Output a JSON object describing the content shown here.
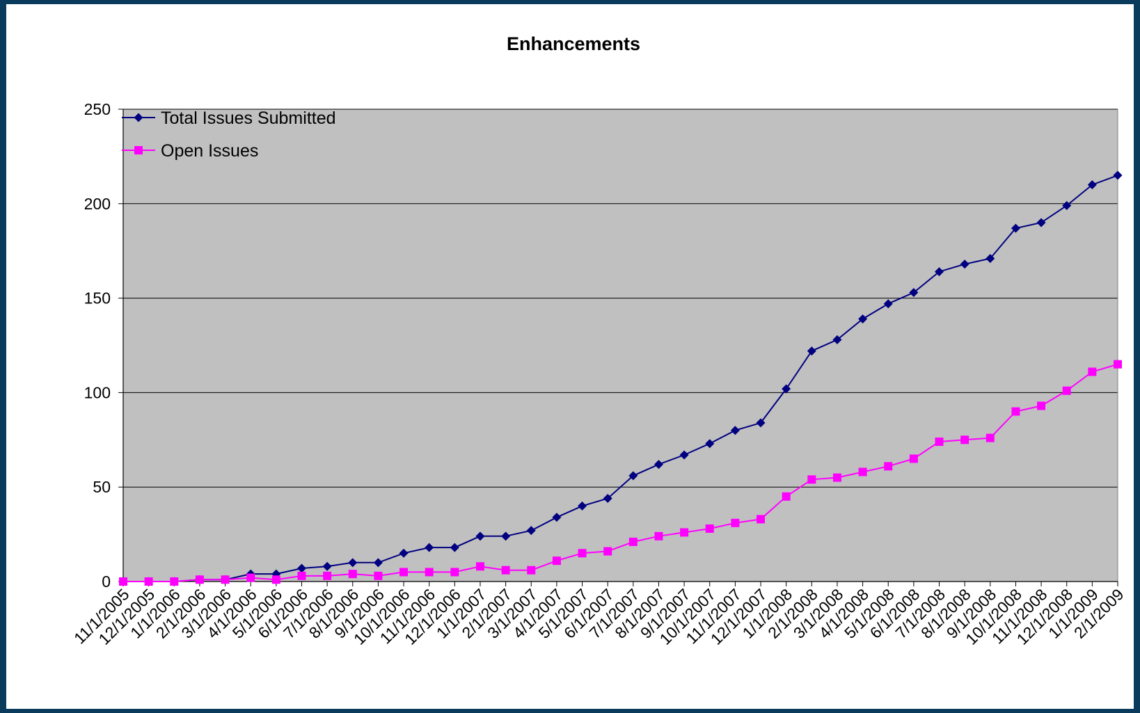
{
  "chart_data": {
    "type": "line",
    "title": "Enhancements",
    "xlabel": "",
    "ylabel": "",
    "ylim": [
      0,
      250
    ],
    "yticks": [
      0,
      50,
      100,
      150,
      200,
      250
    ],
    "grid": true,
    "legend_position": "top-left",
    "plot_background": "#c0c0c0",
    "x": [
      "11/1/2005",
      "12/1/2005",
      "1/1/2006",
      "2/1/2006",
      "3/1/2006",
      "4/1/2006",
      "5/1/2006",
      "6/1/2006",
      "7/1/2006",
      "8/1/2006",
      "9/1/2006",
      "10/1/2006",
      "11/1/2006",
      "12/1/2006",
      "1/1/2007",
      "2/1/2007",
      "3/1/2007",
      "4/1/2007",
      "5/1/2007",
      "6/1/2007",
      "7/1/2007",
      "8/1/2007",
      "9/1/2007",
      "10/1/2007",
      "11/1/2007",
      "12/1/2007",
      "1/1/2008",
      "2/1/2008",
      "3/1/2008",
      "4/1/2008",
      "5/1/2008",
      "6/1/2008",
      "7/1/2008",
      "8/1/2008",
      "9/1/2008",
      "10/1/2008",
      "11/1/2008",
      "12/1/2008",
      "1/1/2009",
      "2/1/2009"
    ],
    "series": [
      {
        "name": "Total Issues Submitted",
        "color": "#000080",
        "marker": "diamond",
        "values": [
          0,
          0,
          0,
          1,
          1,
          4,
          4,
          7,
          8,
          10,
          10,
          15,
          18,
          18,
          24,
          24,
          27,
          34,
          40,
          44,
          56,
          62,
          67,
          73,
          80,
          84,
          102,
          122,
          128,
          139,
          147,
          153,
          164,
          168,
          171,
          187,
          190,
          199,
          210,
          215
        ]
      },
      {
        "name": "Open Issues",
        "color": "#ff00ff",
        "marker": "square",
        "values": [
          0,
          0,
          0,
          1,
          1,
          2,
          1,
          3,
          3,
          4,
          3,
          5,
          5,
          5,
          8,
          6,
          6,
          11,
          15,
          16,
          21,
          24,
          26,
          28,
          31,
          33,
          45,
          54,
          55,
          58,
          61,
          65,
          74,
          75,
          76,
          90,
          93,
          101,
          111,
          115
        ]
      }
    ]
  }
}
